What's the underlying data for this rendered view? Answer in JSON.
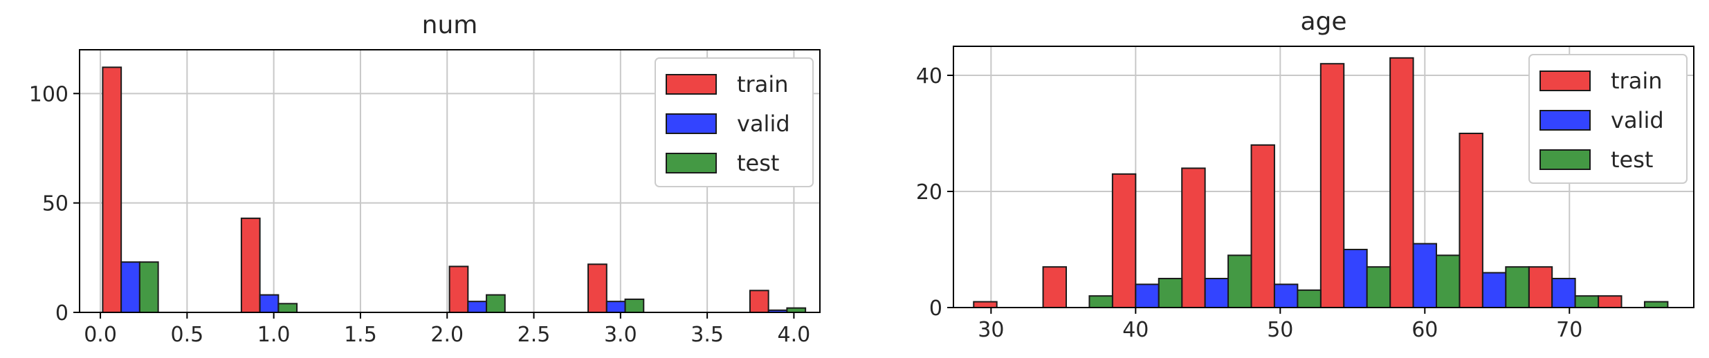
{
  "colors": {
    "train": "#ee4444",
    "valid": "#3344ff",
    "test": "#449944"
  },
  "chart_data": [
    {
      "type": "bar",
      "title": "num",
      "xlim": [
        -0.12,
        4.15
      ],
      "ylim": [
        0,
        120
      ],
      "xticks": [
        0.0,
        0.5,
        1.0,
        1.5,
        2.0,
        2.5,
        3.0,
        3.5,
        4.0
      ],
      "xtick_labels": [
        "0.0",
        "0.5",
        "1.0",
        "1.5",
        "2.0",
        "2.5",
        "3.0",
        "3.5",
        "4.0"
      ],
      "yticks": [
        0,
        50,
        100
      ],
      "ytick_labels": [
        "0",
        "50",
        "100"
      ],
      "bar_width": 0.1067,
      "grid": true,
      "legend_position": "top-right",
      "categories": [
        0.0667,
        0.8667,
        2.0667,
        2.8667,
        3.8
      ],
      "series": [
        {
          "name": "train",
          "values": [
            112,
            43,
            21,
            22,
            10
          ]
        },
        {
          "name": "valid",
          "values": [
            23,
            8,
            5,
            5,
            1
          ]
        },
        {
          "name": "test",
          "values": [
            23,
            4,
            8,
            6,
            2
          ]
        }
      ]
    },
    {
      "type": "bar",
      "title": "age",
      "xlim": [
        27.4,
        78.6
      ],
      "ylim": [
        0,
        45
      ],
      "xticks": [
        30,
        40,
        50,
        60,
        70
      ],
      "xtick_labels": [
        "30",
        "40",
        "50",
        "60",
        "70"
      ],
      "yticks": [
        0,
        20,
        40
      ],
      "ytick_labels": [
        "0",
        "20",
        "40"
      ],
      "bar_width": 1.6,
      "grid": true,
      "legend_position": "top-right",
      "categories": [
        29.6,
        34.4,
        39.2,
        44.0,
        48.8,
        53.6,
        58.4,
        63.2,
        68.0,
        72.8
      ],
      "series": [
        {
          "name": "train",
          "values": [
            1,
            7,
            23,
            24,
            28,
            42,
            43,
            30,
            7,
            2
          ]
        },
        {
          "name": "valid",
          "values": [
            0,
            0,
            4,
            5,
            4,
            10,
            11,
            6,
            5,
            0
          ]
        },
        {
          "name": "test",
          "values": [
            0,
            2,
            5,
            9,
            3,
            7,
            9,
            7,
            2,
            1
          ]
        }
      ]
    }
  ]
}
